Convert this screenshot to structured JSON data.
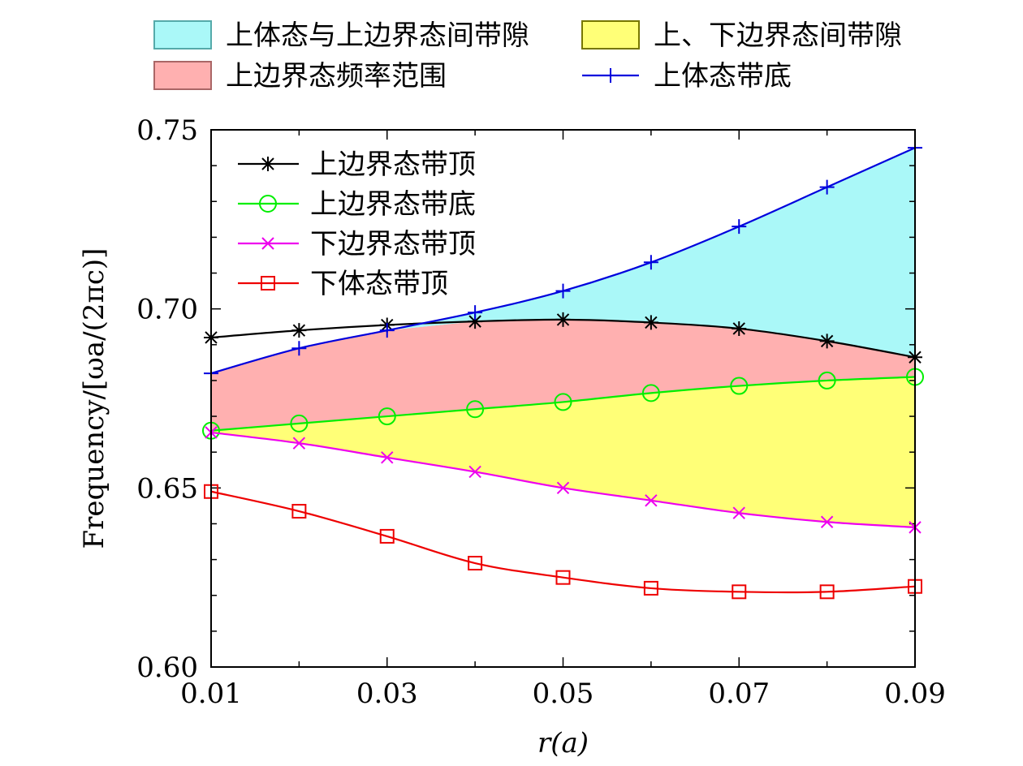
{
  "chart_data": {
    "type": "line",
    "xlabel": "r(a)",
    "ylabel": "Frequency/[ωa/(2πc)]",
    "xlim": [
      0.01,
      0.09
    ],
    "ylim": [
      0.6,
      0.75
    ],
    "x": [
      0.01,
      0.02,
      0.03,
      0.04,
      0.05,
      0.06,
      0.07,
      0.08,
      0.09
    ],
    "x_ticks": [
      0.01,
      0.03,
      0.05,
      0.07,
      0.09
    ],
    "x_tick_labels": [
      "0.01",
      "0.03",
      "0.05",
      "0.07",
      "0.09"
    ],
    "y_ticks": [
      0.6,
      0.65,
      0.7,
      0.75
    ],
    "y_tick_labels": [
      "0.60",
      "0.65",
      "0.70",
      "0.75"
    ],
    "series": [
      {
        "name": "上体态带底",
        "color": "#0000dd",
        "marker": "plus",
        "values": [
          0.682,
          0.689,
          0.694,
          0.699,
          0.705,
          0.713,
          0.723,
          0.734,
          0.745
        ]
      },
      {
        "name": "上边界态带顶",
        "color": "#000000",
        "marker": "star",
        "values": [
          0.692,
          0.694,
          0.6955,
          0.6965,
          0.697,
          0.6962,
          0.6945,
          0.691,
          0.6865
        ]
      },
      {
        "name": "上边界态带底",
        "color": "#00ee00",
        "marker": "circle",
        "values": [
          0.666,
          0.668,
          0.67,
          0.672,
          0.674,
          0.6765,
          0.6785,
          0.68,
          0.681
        ]
      },
      {
        "name": "下边界态带顶",
        "color": "#ee00ee",
        "marker": "cross",
        "values": [
          0.6655,
          0.6625,
          0.6585,
          0.6545,
          0.65,
          0.6465,
          0.643,
          0.6405,
          0.639
        ]
      },
      {
        "name": "下体态带顶",
        "color": "#ee0000",
        "marker": "square",
        "values": [
          0.649,
          0.6435,
          0.6365,
          0.629,
          0.625,
          0.622,
          0.621,
          0.621,
          0.6225
        ]
      }
    ],
    "fills": [
      {
        "name": "上体态与上边界态间带隙",
        "color": "#aaf8f8",
        "edge": "#55aaaa"
      },
      {
        "name": "上、下边界态间带隙",
        "color": "#ffff77",
        "edge": "#777700"
      },
      {
        "name": "上边界态频率范围",
        "color": "#ffb0b0",
        "edge": "#aa6666"
      }
    ],
    "upper_legend": [
      "上体态与上边界态间带隙",
      "上、下边界态间带隙",
      "上边界态频率范围",
      "上体态带底"
    ],
    "inner_legend": [
      "上边界态带顶",
      "上边界态带底",
      "下边界态带顶",
      "下体态带顶"
    ]
  }
}
